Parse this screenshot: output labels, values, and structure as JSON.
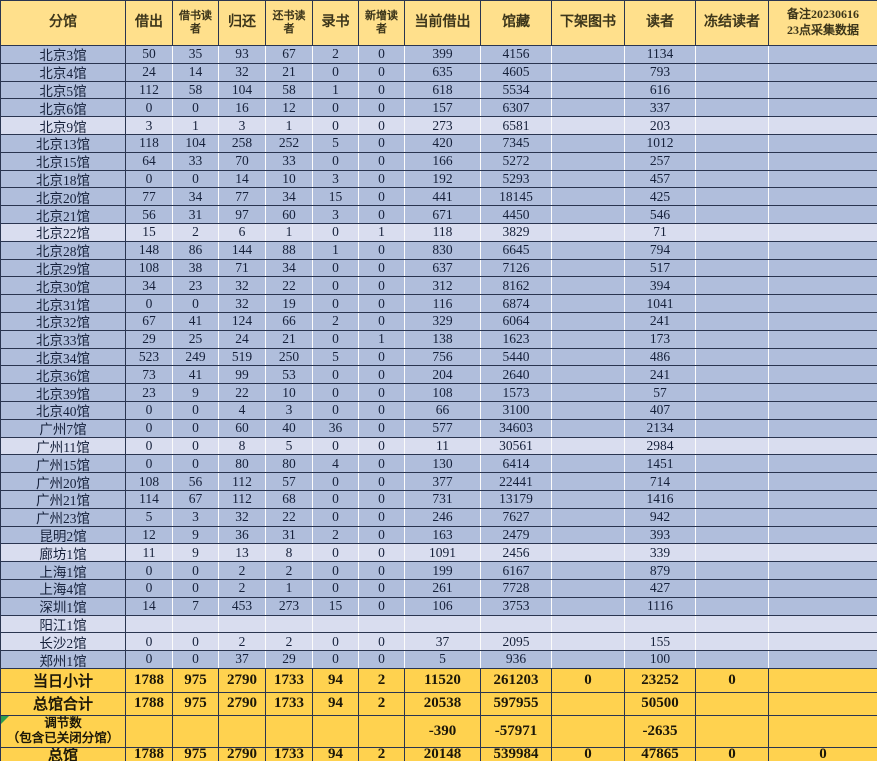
{
  "colors": {
    "header_bg": "#FFE08C",
    "summary_bg": "#FFD24F",
    "row_bg": "#B0BEDC",
    "row_bg_light": "#D9DDEF",
    "grid_dark": "#2A3550",
    "grid_light": "#FBFBFB",
    "marker_green": "#4FB89B",
    "triangle_green": "#2E9E4F",
    "header_text": "#3C351A",
    "data_text": "#15203A"
  },
  "table": {
    "columns": [
      {
        "label": "分馆"
      },
      {
        "label": "借出"
      },
      {
        "label": "借书读者",
        "small": true
      },
      {
        "label": "归还"
      },
      {
        "label": "还书读者",
        "small": true
      },
      {
        "label": "录书"
      },
      {
        "label": "新增读者",
        "small": true
      },
      {
        "label": "当前借出"
      },
      {
        "label": "馆藏"
      },
      {
        "label": "下架图书"
      },
      {
        "label": "读者"
      },
      {
        "label": "冻结读者"
      },
      {
        "label": "备注20230616 23点采集数据",
        "label_line1": "备注20230616",
        "label_line2": "23点采集数据"
      }
    ],
    "rows": [
      {
        "name": "北京3馆",
        "values": [
          "50",
          "35",
          "93",
          "67",
          "2",
          "0",
          "399",
          "4156",
          "",
          "1134",
          "",
          ""
        ]
      },
      {
        "name": "北京4馆",
        "values": [
          "24",
          "14",
          "32",
          "21",
          "0",
          "0",
          "635",
          "4605",
          "",
          "793",
          "",
          ""
        ]
      },
      {
        "name": "北京5馆",
        "values": [
          "112",
          "58",
          "104",
          "58",
          "1",
          "0",
          "618",
          "5534",
          "",
          "616",
          "",
          ""
        ]
      },
      {
        "name": "北京6馆",
        "values": [
          "0",
          "0",
          "16",
          "12",
          "0",
          "0",
          "157",
          "6307",
          "",
          "337",
          "",
          ""
        ]
      },
      {
        "name": "北京9馆",
        "light": true,
        "values": [
          "3",
          "1",
          "3",
          "1",
          "0",
          "0",
          "273",
          "6581",
          "",
          "203",
          "",
          ""
        ]
      },
      {
        "name": "北京13馆",
        "values": [
          "118",
          "104",
          "258",
          "252",
          "5",
          "0",
          "420",
          "7345",
          "",
          "1012",
          "",
          ""
        ]
      },
      {
        "name": "北京15馆",
        "values": [
          "64",
          "33",
          "70",
          "33",
          "0",
          "0",
          "166",
          "5272",
          "",
          "257",
          "",
          ""
        ]
      },
      {
        "name": "北京18馆",
        "values": [
          "0",
          "0",
          "14",
          "10",
          "3",
          "0",
          "192",
          "5293",
          "",
          "457",
          "",
          ""
        ]
      },
      {
        "name": "北京20馆",
        "values": [
          "77",
          "34",
          "77",
          "34",
          "15",
          "0",
          "441",
          "18145",
          "",
          "425",
          "",
          ""
        ]
      },
      {
        "name": "北京21馆",
        "values": [
          "56",
          "31",
          "97",
          "60",
          "3",
          "0",
          "671",
          "4450",
          "",
          "546",
          "",
          ""
        ]
      },
      {
        "name": "北京22馆",
        "light": true,
        "values": [
          "15",
          "2",
          "6",
          "1",
          "0",
          "1",
          "118",
          "3829",
          "",
          "71",
          "",
          ""
        ]
      },
      {
        "name": "北京28馆",
        "values": [
          "148",
          "86",
          "144",
          "88",
          "1",
          "0",
          "830",
          "6645",
          "",
          "794",
          "",
          ""
        ]
      },
      {
        "name": "北京29馆",
        "values": [
          "108",
          "38",
          "71",
          "34",
          "0",
          "0",
          "637",
          "7126",
          "",
          "517",
          "",
          ""
        ]
      },
      {
        "name": "北京30馆",
        "values": [
          "34",
          "23",
          "32",
          "22",
          "0",
          "0",
          "312",
          "8162",
          "",
          "394",
          "",
          ""
        ]
      },
      {
        "name": "北京31馆",
        "values": [
          "0",
          "0",
          "32",
          "19",
          "0",
          "0",
          "116",
          "6874",
          "",
          "1041",
          "",
          ""
        ]
      },
      {
        "name": "北京32馆",
        "values": [
          "67",
          "41",
          "124",
          "66",
          "2",
          "0",
          "329",
          "6064",
          "",
          "241",
          "",
          ""
        ]
      },
      {
        "name": "北京33馆",
        "values": [
          "29",
          "25",
          "24",
          "21",
          "0",
          "1",
          "138",
          "1623",
          "",
          "173",
          "",
          ""
        ]
      },
      {
        "name": "北京34馆",
        "values": [
          "523",
          "249",
          "519",
          "250",
          "5",
          "0",
          "756",
          "5440",
          "",
          "486",
          "",
          ""
        ]
      },
      {
        "name": "北京36馆",
        "values": [
          "73",
          "41",
          "99",
          "53",
          "0",
          "0",
          "204",
          "2640",
          "",
          "241",
          "",
          ""
        ]
      },
      {
        "name": "北京39馆",
        "values": [
          "23",
          "9",
          "22",
          "10",
          "0",
          "0",
          "108",
          "1573",
          "",
          "57",
          "",
          ""
        ]
      },
      {
        "name": "北京40馆",
        "values": [
          "0",
          "0",
          "4",
          "3",
          "0",
          "0",
          "66",
          "3100",
          "",
          "407",
          "",
          ""
        ]
      },
      {
        "name": "广州7馆",
        "values": [
          "0",
          "0",
          "60",
          "40",
          "36",
          "0",
          "577",
          "34603",
          "",
          "2134",
          "",
          ""
        ]
      },
      {
        "name": "广州11馆",
        "light": true,
        "values": [
          "0",
          "0",
          "8",
          "5",
          "0",
          "0",
          "11",
          "30561",
          "",
          "2984",
          "",
          ""
        ]
      },
      {
        "name": "广州15馆",
        "values": [
          "0",
          "0",
          "80",
          "80",
          "4",
          "0",
          "130",
          "6414",
          "",
          "1451",
          "",
          ""
        ]
      },
      {
        "name": "广州20馆",
        "values": [
          "108",
          "56",
          "112",
          "57",
          "0",
          "0",
          "377",
          "22441",
          "",
          "714",
          "",
          ""
        ]
      },
      {
        "name": "广州21馆",
        "values": [
          "114",
          "67",
          "112",
          "68",
          "0",
          "0",
          "731",
          "13179",
          "",
          "1416",
          "",
          ""
        ]
      },
      {
        "name": "广州23馆",
        "values": [
          "5",
          "3",
          "32",
          "22",
          "0",
          "0",
          "246",
          "7627",
          "",
          "942",
          "",
          ""
        ]
      },
      {
        "name": "昆明2馆",
        "values": [
          "12",
          "9",
          "36",
          "31",
          "2",
          "0",
          "163",
          "2479",
          "",
          "393",
          "",
          ""
        ]
      },
      {
        "name": "廊坊1馆",
        "light": true,
        "values": [
          "11",
          "9",
          "13",
          "8",
          "0",
          "0",
          "1091",
          "2456",
          "",
          "339",
          "",
          ""
        ]
      },
      {
        "name": "上海1馆",
        "values": [
          "0",
          "0",
          "2",
          "2",
          "0",
          "0",
          "199",
          "6167",
          "",
          "879",
          "",
          ""
        ]
      },
      {
        "name": "上海4馆",
        "marker": true,
        "values": [
          "0",
          "0",
          "2",
          "1",
          "0",
          "0",
          "261",
          "7728",
          "",
          "427",
          "",
          ""
        ]
      },
      {
        "name": "深圳1馆",
        "values": [
          "14",
          "7",
          "453",
          "273",
          "15",
          "0",
          "106",
          "3753",
          "",
          "1116",
          "",
          ""
        ]
      },
      {
        "name": "阳江1馆",
        "light": true,
        "values": [
          "",
          "",
          "",
          "",
          "",
          "",
          "",
          "",
          "",
          "",
          "",
          ""
        ]
      },
      {
        "name": "长沙2馆",
        "light": true,
        "values": [
          "0",
          "0",
          "2",
          "2",
          "0",
          "0",
          "37",
          "2095",
          "",
          "155",
          "",
          ""
        ]
      },
      {
        "name": "郑州1馆",
        "values": [
          "0",
          "0",
          "37",
          "29",
          "0",
          "0",
          "5",
          "936",
          "",
          "100",
          "",
          ""
        ]
      }
    ],
    "summary_rows": [
      {
        "name": "当日小计",
        "values": [
          "1788",
          "975",
          "2790",
          "1733",
          "94",
          "2",
          "11520",
          "261203",
          "0",
          "23252",
          "0",
          ""
        ]
      },
      {
        "name": "总馆合计",
        "values": [
          "1788",
          "975",
          "2790",
          "1733",
          "94",
          "2",
          "20538",
          "597955",
          "",
          "50500",
          "",
          ""
        ]
      },
      {
        "name": "调节数",
        "name2": "（包含已关闭分馆）",
        "triangle": true,
        "values": [
          "",
          "",
          "",
          "",
          "",
          "",
          "-390",
          "-57971",
          "",
          "-2635",
          "",
          ""
        ]
      },
      {
        "name": "总馆",
        "values": [
          "1788",
          "975",
          "2790",
          "1733",
          "94",
          "2",
          "20148",
          "539984",
          "0",
          "47865",
          "0",
          "0"
        ]
      }
    ]
  }
}
